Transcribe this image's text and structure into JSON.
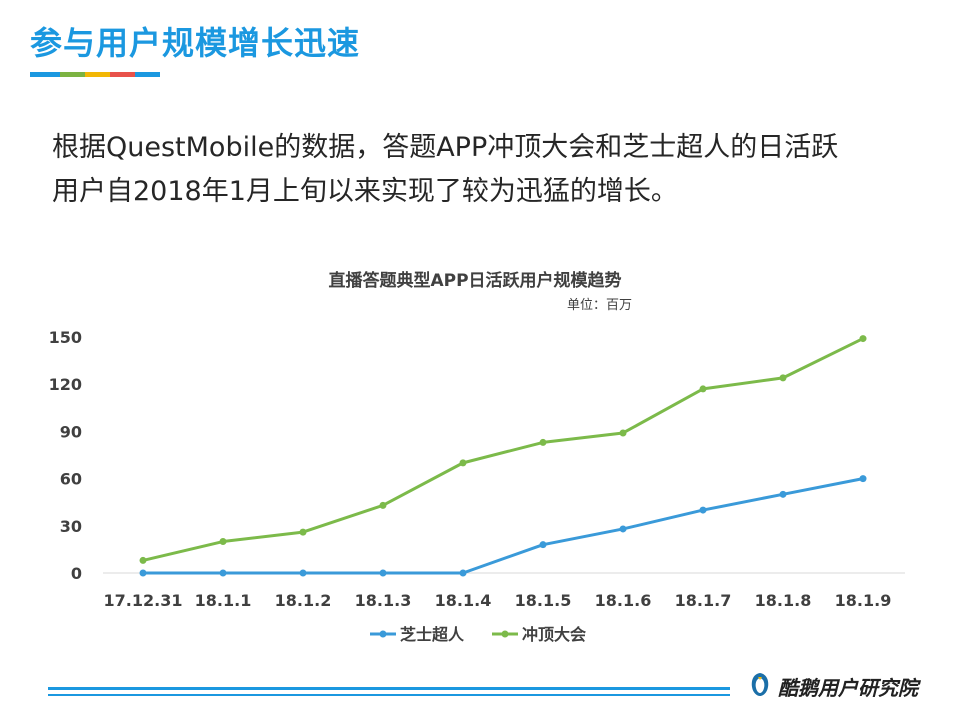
{
  "slide": {
    "title": "参与用户规模增长迅速",
    "underline_colors": [
      "#1b98e0",
      "#7cb342",
      "#f2b705",
      "#e8524a",
      "#1b98e0"
    ],
    "intro_line1": "根据QuestMobile的数据，答题APP冲顶大会和芝士超人的日活跃",
    "intro_line2": "用户自2018年1月上旬以来实现了较为迅猛的增长。"
  },
  "chart_data": {
    "type": "line",
    "title": "直播答题典型APP日活跃用户规模趋势",
    "subtitle": "单位：百万",
    "categories": [
      "17.12.31",
      "18.1.1",
      "18.1.2",
      "18.1.3",
      "18.1.4",
      "18.1.5",
      "18.1.6",
      "18.1.7",
      "18.1.8",
      "18.1.9"
    ],
    "series": [
      {
        "name": "芝士超人",
        "color": "#3a9ad9",
        "values": [
          0,
          0,
          0,
          0,
          0,
          18,
          28,
          40,
          50,
          60
        ]
      },
      {
        "name": "冲顶大会",
        "color": "#7cba4a",
        "values": [
          8,
          20,
          26,
          43,
          70,
          83,
          89,
          117,
          124,
          149
        ]
      }
    ],
    "ylim": [
      0,
      150
    ],
    "yticks": [
      0,
      30,
      60,
      90,
      120,
      150
    ],
    "grid": false,
    "legend_position": "bottom"
  },
  "footer": {
    "brand_name": "酷鹅用户研究院",
    "logo_icon": "penguin-logo-icon",
    "line_color": "#1b98e0"
  }
}
